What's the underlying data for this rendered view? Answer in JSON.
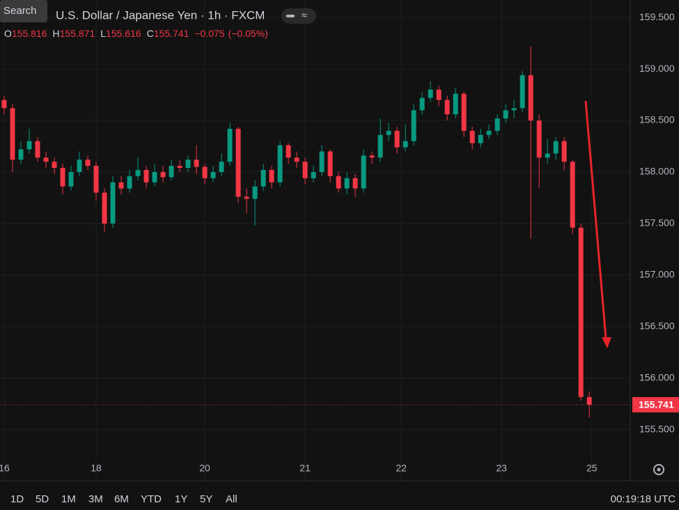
{
  "chart_data": {
    "type": "candlestick",
    "title": "U.S. Dollar / Japanese Yen · 1h · FXCM",
    "search_label": "Search",
    "ohlc_letters": [
      "O",
      "H",
      "L",
      "C"
    ],
    "change": "−0.075",
    "change_percent": "(−0.05%)",
    "up_color": "#089981",
    "down_color": "#f23645",
    "open": [
      158.7,
      158.62,
      158.12,
      158.22,
      158.3,
      158.14,
      158.1,
      158.04,
      157.86,
      158.0,
      158.12,
      158.06,
      157.8,
      157.5,
      157.9,
      157.84,
      157.96,
      158.02,
      157.9,
      158.0,
      157.95,
      158.06,
      158.04,
      158.12,
      158.05,
      157.94,
      158.0,
      158.1,
      158.42,
      157.76,
      157.74,
      157.86,
      158.02,
      157.9,
      158.26,
      158.14,
      158.1,
      157.94,
      158.0,
      158.2,
      157.96,
      157.84,
      157.94,
      157.84,
      158.16,
      158.14,
      158.36,
      158.4,
      158.24,
      158.3,
      158.6,
      158.72,
      158.8,
      158.7,
      158.56,
      158.76,
      158.4,
      158.28,
      158.36,
      158.4,
      158.52,
      158.6,
      158.62,
      158.94,
      158.5,
      158.14,
      158.18,
      158.3,
      158.1,
      157.46,
      155.816
    ],
    "high": [
      158.74,
      158.66,
      158.3,
      158.42,
      158.34,
      158.2,
      158.14,
      158.08,
      158.06,
      158.2,
      158.16,
      158.1,
      157.84,
      157.96,
      157.96,
      158.02,
      158.14,
      158.06,
      158.08,
      158.06,
      158.12,
      158.12,
      158.16,
      158.26,
      158.08,
      158.06,
      158.18,
      158.48,
      158.44,
      157.84,
      157.92,
      158.08,
      158.06,
      158.3,
      158.28,
      158.2,
      158.14,
      158.06,
      158.26,
      158.22,
      158.0,
      158.0,
      157.98,
      158.22,
      158.2,
      158.52,
      158.48,
      158.44,
      158.46,
      158.66,
      158.78,
      158.88,
      158.84,
      158.74,
      158.82,
      158.78,
      158.44,
      158.42,
      158.46,
      158.56,
      158.66,
      158.7,
      158.98,
      159.22,
      158.56,
      158.32,
      158.34,
      158.34,
      158.12,
      157.5,
      155.871
    ],
    "low": [
      158.56,
      158.0,
      158.08,
      158.18,
      158.1,
      158.04,
      157.98,
      157.78,
      157.82,
      157.96,
      158.02,
      157.72,
      157.42,
      157.46,
      157.78,
      157.8,
      157.92,
      157.84,
      157.86,
      157.9,
      157.92,
      158.0,
      158.0,
      157.98,
      157.88,
      157.9,
      157.96,
      158.06,
      157.7,
      157.6,
      157.48,
      157.82,
      157.84,
      157.86,
      158.08,
      158.04,
      157.88,
      157.9,
      157.96,
      157.9,
      157.8,
      157.78,
      157.76,
      157.8,
      158.08,
      158.1,
      158.3,
      158.18,
      158.2,
      158.26,
      158.56,
      158.68,
      158.64,
      158.5,
      158.52,
      158.34,
      158.22,
      158.24,
      158.32,
      158.36,
      158.48,
      158.52,
      158.58,
      157.35,
      157.85,
      158.08,
      158.12,
      158.02,
      157.4,
      155.78,
      155.616
    ],
    "close": [
      158.62,
      158.12,
      158.22,
      158.3,
      158.14,
      158.1,
      158.04,
      157.86,
      158.0,
      158.12,
      158.06,
      157.8,
      157.5,
      157.9,
      157.84,
      157.96,
      158.02,
      157.9,
      158.0,
      157.95,
      158.06,
      158.04,
      158.12,
      158.05,
      157.94,
      158.0,
      158.1,
      158.42,
      157.76,
      157.74,
      157.86,
      158.02,
      157.9,
      158.26,
      158.14,
      158.1,
      157.94,
      158.0,
      158.2,
      157.96,
      157.84,
      157.94,
      157.84,
      158.16,
      158.14,
      158.36,
      158.4,
      158.24,
      158.3,
      158.6,
      158.72,
      158.8,
      158.7,
      158.56,
      158.76,
      158.4,
      158.28,
      158.36,
      158.4,
      158.52,
      158.6,
      158.62,
      158.94,
      158.5,
      158.14,
      158.18,
      158.3,
      158.1,
      157.46,
      155.816,
      155.741
    ],
    "xlim": [
      -0.5,
      74.9
    ],
    "xticks": [
      {
        "value": 0,
        "label": "16"
      },
      {
        "value": 11,
        "label": "18"
      },
      {
        "value": 24,
        "label": "20"
      },
      {
        "value": 36,
        "label": "21"
      },
      {
        "value": 47.5,
        "label": "22"
      },
      {
        "value": 59.5,
        "label": "23"
      },
      {
        "value": 70.3,
        "label": "25"
      }
    ],
    "ylim": [
      155.24,
      159.67
    ],
    "yticks": [
      {
        "value": 155.5,
        "label": "155.500"
      },
      {
        "value": 156,
        "label": "156.000"
      },
      {
        "value": 156.5,
        "label": "156.500"
      },
      {
        "value": 157,
        "label": "157.000"
      },
      {
        "value": 157.5,
        "label": "157.500"
      },
      {
        "value": 158,
        "label": "158.000"
      },
      {
        "value": 158.5,
        "label": "158.500"
      },
      {
        "value": 159,
        "label": "159.000"
      },
      {
        "value": 159.5,
        "label": "159.500"
      }
    ],
    "grid": true,
    "ranges": [
      "1D",
      "5D",
      "1M",
      "3M",
      "6M",
      "YTD",
      "1Y",
      "5Y",
      "All"
    ],
    "clock": "00:19:18 UTC"
  }
}
